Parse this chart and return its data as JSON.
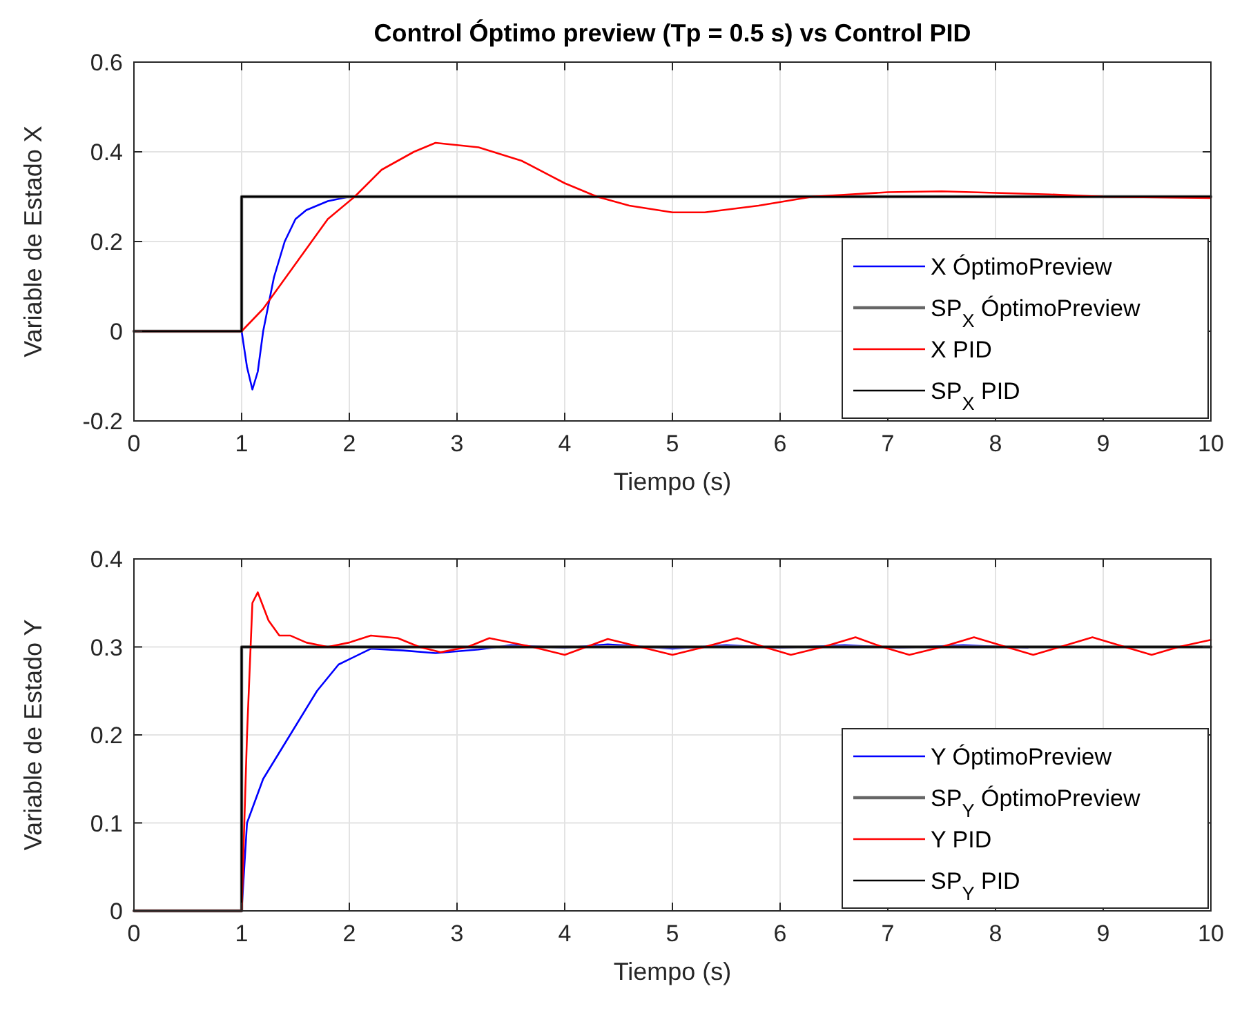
{
  "chart_data": [
    {
      "type": "line",
      "title": "Control Óptimo preview (Tp = 0.5 s) vs Control PID",
      "xlabel": "Tiempo (s)",
      "ylabel": "Variable de Estado X",
      "xlim": [
        0,
        10
      ],
      "xticks": [
        0,
        1,
        2,
        3,
        4,
        5,
        6,
        7,
        8,
        9,
        10
      ],
      "ylim": [
        -0.2,
        0.6
      ],
      "yticks": [
        -0.2,
        0,
        0.2,
        0.4,
        0.6
      ],
      "grid": true,
      "legend": "bottom right",
      "line_style": "solid",
      "marker": "none",
      "series": [
        {
          "name": "X ÓptimoPreview",
          "color": "#0000ff",
          "x": [
            0,
            1,
            1.05,
            1.1,
            1.15,
            1.2,
            1.25,
            1.3,
            1.4,
            1.5,
            1.6,
            1.8,
            2
          ],
          "values": [
            0,
            0,
            -0.08,
            -0.13,
            -0.09,
            0,
            0.06,
            0.12,
            0.2,
            0.25,
            0.27,
            0.29,
            0.3
          ]
        },
        {
          "name": "SP$_{X}$ ÓptimoPreview",
          "color": "#666666",
          "x": [
            0,
            1,
            1,
            10
          ],
          "values": [
            0,
            0,
            0.3,
            0.3
          ]
        },
        {
          "name": "X PID",
          "color": "#ff0000",
          "x": [
            0,
            1,
            1.2,
            1.5,
            1.8,
            2.05,
            2.3,
            2.6,
            2.8,
            3.2,
            3.6,
            4,
            4.3,
            4.6,
            5,
            5.3,
            5.8,
            6.3,
            7,
            7.5,
            8.5,
            9,
            10
          ],
          "values": [
            0,
            0,
            0.05,
            0.15,
            0.25,
            0.3,
            0.36,
            0.4,
            0.42,
            0.41,
            0.38,
            0.33,
            0.3,
            0.28,
            0.265,
            0.265,
            0.28,
            0.3,
            0.31,
            0.312,
            0.305,
            0.3,
            0.297
          ]
        },
        {
          "name": "SP$_{X}$ PID",
          "color": "#000000",
          "x": [
            0,
            1,
            1,
            10
          ],
          "values": [
            0,
            0,
            0.3,
            0.3
          ]
        }
      ]
    },
    {
      "type": "line",
      "xlabel": "Tiempo (s)",
      "ylabel": "Variable de Estado Y",
      "xlim": [
        0,
        10
      ],
      "xticks": [
        0,
        1,
        2,
        3,
        4,
        5,
        6,
        7,
        8,
        9,
        10
      ],
      "ylim": [
        0,
        0.4
      ],
      "yticks": [
        0,
        0.1,
        0.2,
        0.3,
        0.4
      ],
      "grid": true,
      "legend": "bottom right",
      "line_style": "solid",
      "marker": "none",
      "series": [
        {
          "name": "Y ÓptimoPreview",
          "color": "#0000ff",
          "x": [
            0,
            1,
            1.05,
            1.2,
            1.45,
            1.7,
            1.9,
            2.2,
            2.5,
            2.8,
            3.2,
            3.5,
            4,
            4.4,
            5,
            5.5,
            6,
            6.6,
            7.1,
            7.7,
            8.3
          ],
          "values": [
            0,
            0,
            0.1,
            0.15,
            0.2,
            0.25,
            0.28,
            0.298,
            0.296,
            0.293,
            0.297,
            0.302,
            0.299,
            0.303,
            0.298,
            0.302,
            0.299,
            0.302,
            0.299,
            0.302,
            0.299
          ]
        },
        {
          "name": "SP$_{Y}$ ÓptimoPreview",
          "color": "#666666",
          "x": [
            0,
            1,
            1,
            10
          ],
          "values": [
            0,
            0,
            0.3,
            0.3
          ]
        },
        {
          "name": "Y PID",
          "color": "#ff0000",
          "x": [
            0,
            1,
            1.05,
            1.1,
            1.15,
            1.25,
            1.35,
            1.45,
            1.6,
            1.8,
            2,
            2.2,
            2.45,
            2.65,
            2.85,
            3.1,
            3.3,
            3.7,
            4,
            4.2,
            4.4,
            4.7,
            5,
            5.3,
            5.6,
            5.85,
            6.1,
            6.4,
            6.7,
            6.95,
            7.2,
            7.5,
            7.8,
            8.1,
            8.35,
            8.6,
            8.9,
            9.2,
            9.45,
            9.7,
            10
          ],
          "values": [
            0,
            0,
            0.2,
            0.35,
            0.362,
            0.33,
            0.313,
            0.313,
            0.305,
            0.3,
            0.305,
            0.313,
            0.31,
            0.3,
            0.294,
            0.3,
            0.31,
            0.3,
            0.291,
            0.3,
            0.309,
            0.3,
            0.291,
            0.3,
            0.31,
            0.3,
            0.291,
            0.3,
            0.311,
            0.3,
            0.291,
            0.3,
            0.311,
            0.3,
            0.291,
            0.3,
            0.311,
            0.3,
            0.291,
            0.3,
            0.308
          ]
        },
        {
          "name": "SP$_{Y}$ PID",
          "color": "#000000",
          "x": [
            0,
            1,
            1,
            10
          ],
          "values": [
            0,
            0,
            0.3,
            0.3
          ]
        }
      ]
    }
  ]
}
